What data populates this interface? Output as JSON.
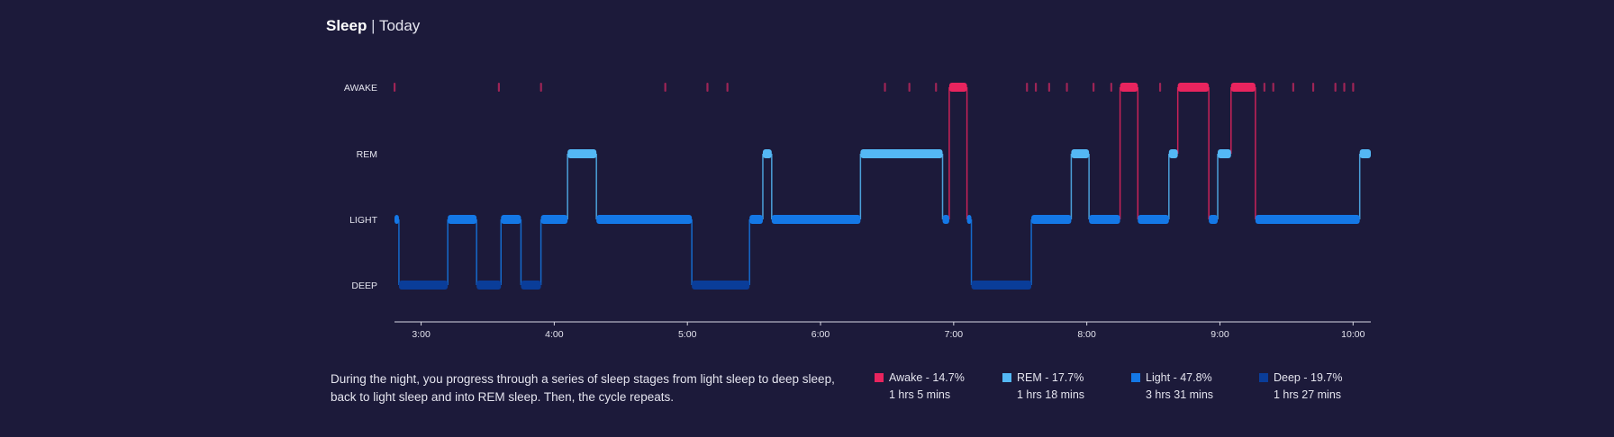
{
  "header": {
    "title": "Sleep",
    "separator": "|",
    "subtitle": "Today"
  },
  "chart_data": {
    "type": "line",
    "title": "Sleep",
    "subtitle": "Today",
    "y_categories": [
      "AWAKE",
      "REM",
      "LIGHT",
      "DEEP"
    ],
    "x_ticks": [
      "3:00",
      "4:00",
      "5:00",
      "6:00",
      "7:00",
      "8:00",
      "9:00",
      "10:00"
    ],
    "xlim": [
      "2:48",
      "10:08"
    ],
    "colors": {
      "AWAKE": "#e8245e",
      "REM": "#54b8f5",
      "LIGHT": "#1478e6",
      "DEEP": "#0a3d99"
    },
    "series": [
      {
        "start": "2:48",
        "end": "2:50",
        "stage": "LIGHT"
      },
      {
        "start": "2:50",
        "end": "3:12",
        "stage": "DEEP"
      },
      {
        "start": "3:12",
        "end": "3:25",
        "stage": "LIGHT"
      },
      {
        "start": "3:25",
        "end": "3:36",
        "stage": "DEEP"
      },
      {
        "start": "3:36",
        "end": "3:45",
        "stage": "LIGHT"
      },
      {
        "start": "3:45",
        "end": "3:54",
        "stage": "DEEP"
      },
      {
        "start": "3:54",
        "end": "4:06",
        "stage": "LIGHT"
      },
      {
        "start": "4:06",
        "end": "4:19",
        "stage": "REM"
      },
      {
        "start": "4:19",
        "end": "5:02",
        "stage": "LIGHT"
      },
      {
        "start": "5:02",
        "end": "5:28",
        "stage": "DEEP"
      },
      {
        "start": "5:28",
        "end": "5:34",
        "stage": "LIGHT"
      },
      {
        "start": "5:34",
        "end": "5:38",
        "stage": "REM"
      },
      {
        "start": "5:38",
        "end": "6:18",
        "stage": "LIGHT"
      },
      {
        "start": "6:18",
        "end": "6:55",
        "stage": "REM"
      },
      {
        "start": "6:55",
        "end": "6:58",
        "stage": "LIGHT"
      },
      {
        "start": "6:58",
        "end": "7:06",
        "stage": "AWAKE"
      },
      {
        "start": "7:06",
        "end": "7:08",
        "stage": "LIGHT"
      },
      {
        "start": "7:08",
        "end": "7:35",
        "stage": "DEEP"
      },
      {
        "start": "7:35",
        "end": "7:53",
        "stage": "LIGHT"
      },
      {
        "start": "7:53",
        "end": "8:01",
        "stage": "REM"
      },
      {
        "start": "8:01",
        "end": "8:15",
        "stage": "LIGHT"
      },
      {
        "start": "8:15",
        "end": "8:23",
        "stage": "AWAKE"
      },
      {
        "start": "8:23",
        "end": "8:37",
        "stage": "LIGHT"
      },
      {
        "start": "8:37",
        "end": "8:41",
        "stage": "REM"
      },
      {
        "start": "8:41",
        "end": "8:55",
        "stage": "AWAKE"
      },
      {
        "start": "8:55",
        "end": "8:59",
        "stage": "LIGHT"
      },
      {
        "start": "8:59",
        "end": "9:05",
        "stage": "REM"
      },
      {
        "start": "9:05",
        "end": "9:16",
        "stage": "AWAKE"
      },
      {
        "start": "9:16",
        "end": "10:03",
        "stage": "LIGHT"
      },
      {
        "start": "10:03",
        "end": "10:08",
        "stage": "REM"
      }
    ],
    "awake_ticks": [
      "2:48",
      "3:35",
      "3:54",
      "4:50",
      "5:09",
      "5:18",
      "6:29",
      "6:40",
      "6:52",
      "7:33",
      "7:37",
      "7:43",
      "7:51",
      "8:03",
      "8:11",
      "8:33",
      "9:20",
      "9:24",
      "9:33",
      "9:42",
      "9:52",
      "9:56",
      "10:00"
    ],
    "summary": [
      {
        "stage": "Awake",
        "percent": "14.7%",
        "duration": "1 hrs 5 mins"
      },
      {
        "stage": "REM",
        "percent": "17.7%",
        "duration": "1 hrs 18 mins"
      },
      {
        "stage": "Light",
        "percent": "47.8%",
        "duration": "3 hrs 31 mins"
      },
      {
        "stage": "Deep",
        "percent": "19.7%",
        "duration": "1 hrs 27 mins"
      }
    ]
  },
  "description": "During the night, you progress through a series of sleep stages from light sleep to deep sleep, back to light sleep and into REM sleep. Then, the cycle repeats.",
  "legend": [
    {
      "label": "Awake - 14.7%",
      "duration": "1 hrs 5 mins",
      "color": "#e8245e"
    },
    {
      "label": "REM - 17.7%",
      "duration": "1 hrs 18 mins",
      "color": "#54b8f5"
    },
    {
      "label": "Light - 47.8%",
      "duration": "3 hrs 31 mins",
      "color": "#1478e6"
    },
    {
      "label": "Deep - 19.7%",
      "duration": "1 hrs 27 mins",
      "color": "#0a3d99"
    }
  ]
}
